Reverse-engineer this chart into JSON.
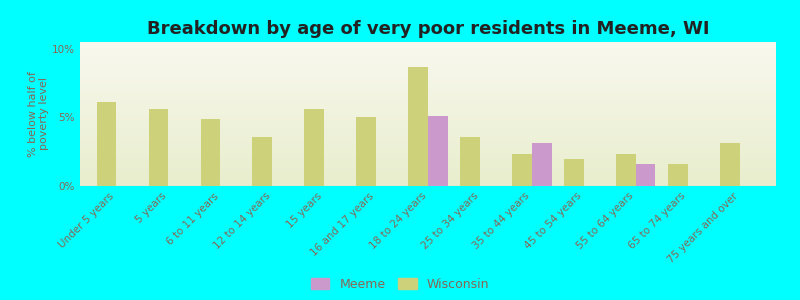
{
  "title": "Breakdown by age of very poor residents in Meeme, WI",
  "ylabel": "% below half of\npoverty level",
  "background_color": "#00FFFF",
  "plot_bg_top": "#f8f8ee",
  "plot_bg_bottom": "#e8edcc",
  "categories": [
    "Under 5 years",
    "5 years",
    "6 to 11 years",
    "12 to 14 years",
    "15 years",
    "16 and 17 years",
    "18 to 24 years",
    "25 to 34 years",
    "35 to 44 years",
    "45 to 54 years",
    "55 to 64 years",
    "65 to 74 years",
    "75 years and over"
  ],
  "wisconsin_values": [
    6.1,
    5.6,
    4.9,
    3.6,
    5.6,
    5.0,
    8.7,
    3.6,
    2.3,
    2.0,
    2.3,
    1.6,
    3.1
  ],
  "meeme_values": [
    0,
    0,
    0,
    0,
    0,
    0,
    5.1,
    0,
    3.1,
    0,
    1.6,
    0,
    0
  ],
  "wisconsin_color": "#cdd17a",
  "meeme_color": "#cc99cc",
  "ylim": [
    0,
    10.5
  ],
  "yticks": [
    0,
    5,
    10
  ],
  "ytick_labels": [
    "0%",
    "5%",
    "10%"
  ],
  "bar_width": 0.38,
  "title_fontsize": 13,
  "axis_label_fontsize": 8,
  "tick_fontsize": 7.5,
  "legend_meeme": "Meeme",
  "legend_wisconsin": "Wisconsin",
  "text_color": "#886655"
}
